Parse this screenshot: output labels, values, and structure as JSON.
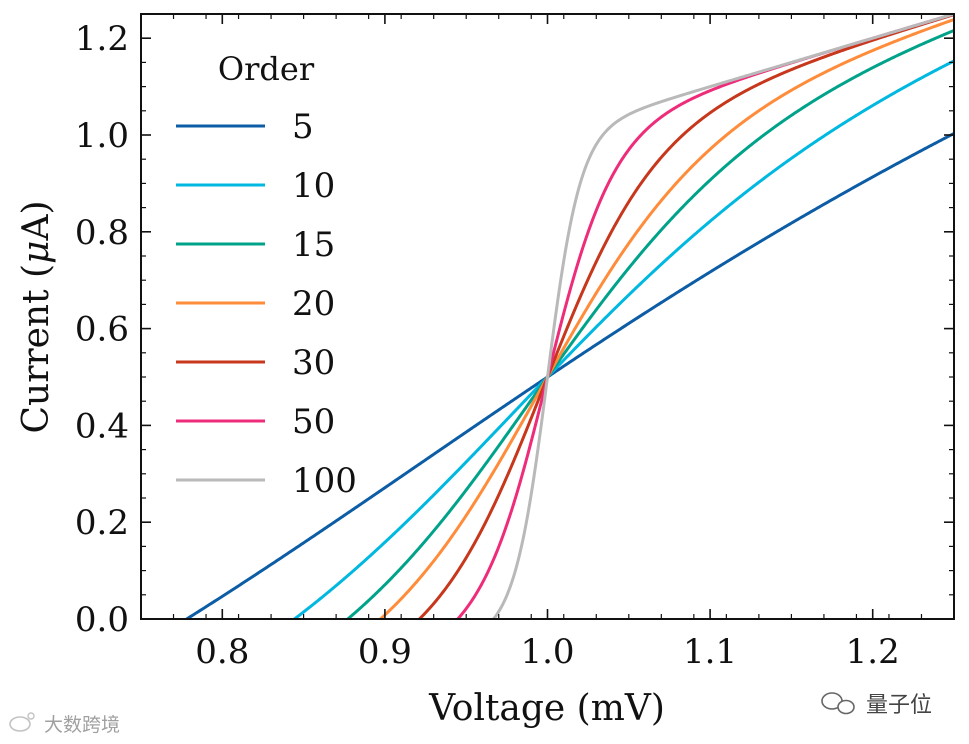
{
  "chart_data": {
    "type": "line",
    "title": "",
    "xlabel": "Voltage (mV)",
    "ylabel_prefix": "Current (",
    "ylabel_mu": "μ",
    "ylabel_suffix": "A)",
    "xlim": [
      0.75,
      1.25
    ],
    "ylim": [
      0.0,
      1.25
    ],
    "xticks": [
      0.8,
      0.9,
      1.0,
      1.1,
      1.2
    ],
    "xtick_labels": [
      "0.8",
      "0.9",
      "1.0",
      "1.1",
      "1.2"
    ],
    "yticks": [
      0.0,
      0.2,
      0.4,
      0.6,
      0.8,
      1.0,
      1.2
    ],
    "ytick_labels": [
      "0.0",
      "0.2",
      "0.4",
      "0.6",
      "0.8",
      "1.0",
      "1.2"
    ],
    "x_minor_step": 0.02,
    "y_minor_step": 0.05,
    "grid": false,
    "legend_title": "Order",
    "legend_position": "upper-left",
    "function": "y = x^p / (x^p + 1) + (x - 1)",
    "x_range": [
      0.75,
      1.25
    ],
    "series": [
      {
        "name": "5",
        "p": 5,
        "color": "#0C5DA5"
      },
      {
        "name": "10",
        "p": 10,
        "color": "#00B8E0"
      },
      {
        "name": "15",
        "p": 15,
        "color": "#00A38A"
      },
      {
        "name": "20",
        "p": 20,
        "color": "#FF8C3A"
      },
      {
        "name": "30",
        "p": 30,
        "color": "#C7371C"
      },
      {
        "name": "50",
        "p": 50,
        "color": "#EE2C7A"
      },
      {
        "name": "100",
        "p": 100,
        "color": "#B9B9B9"
      }
    ]
  },
  "watermarks": {
    "right": "量子位",
    "left": "大数跨境"
  }
}
